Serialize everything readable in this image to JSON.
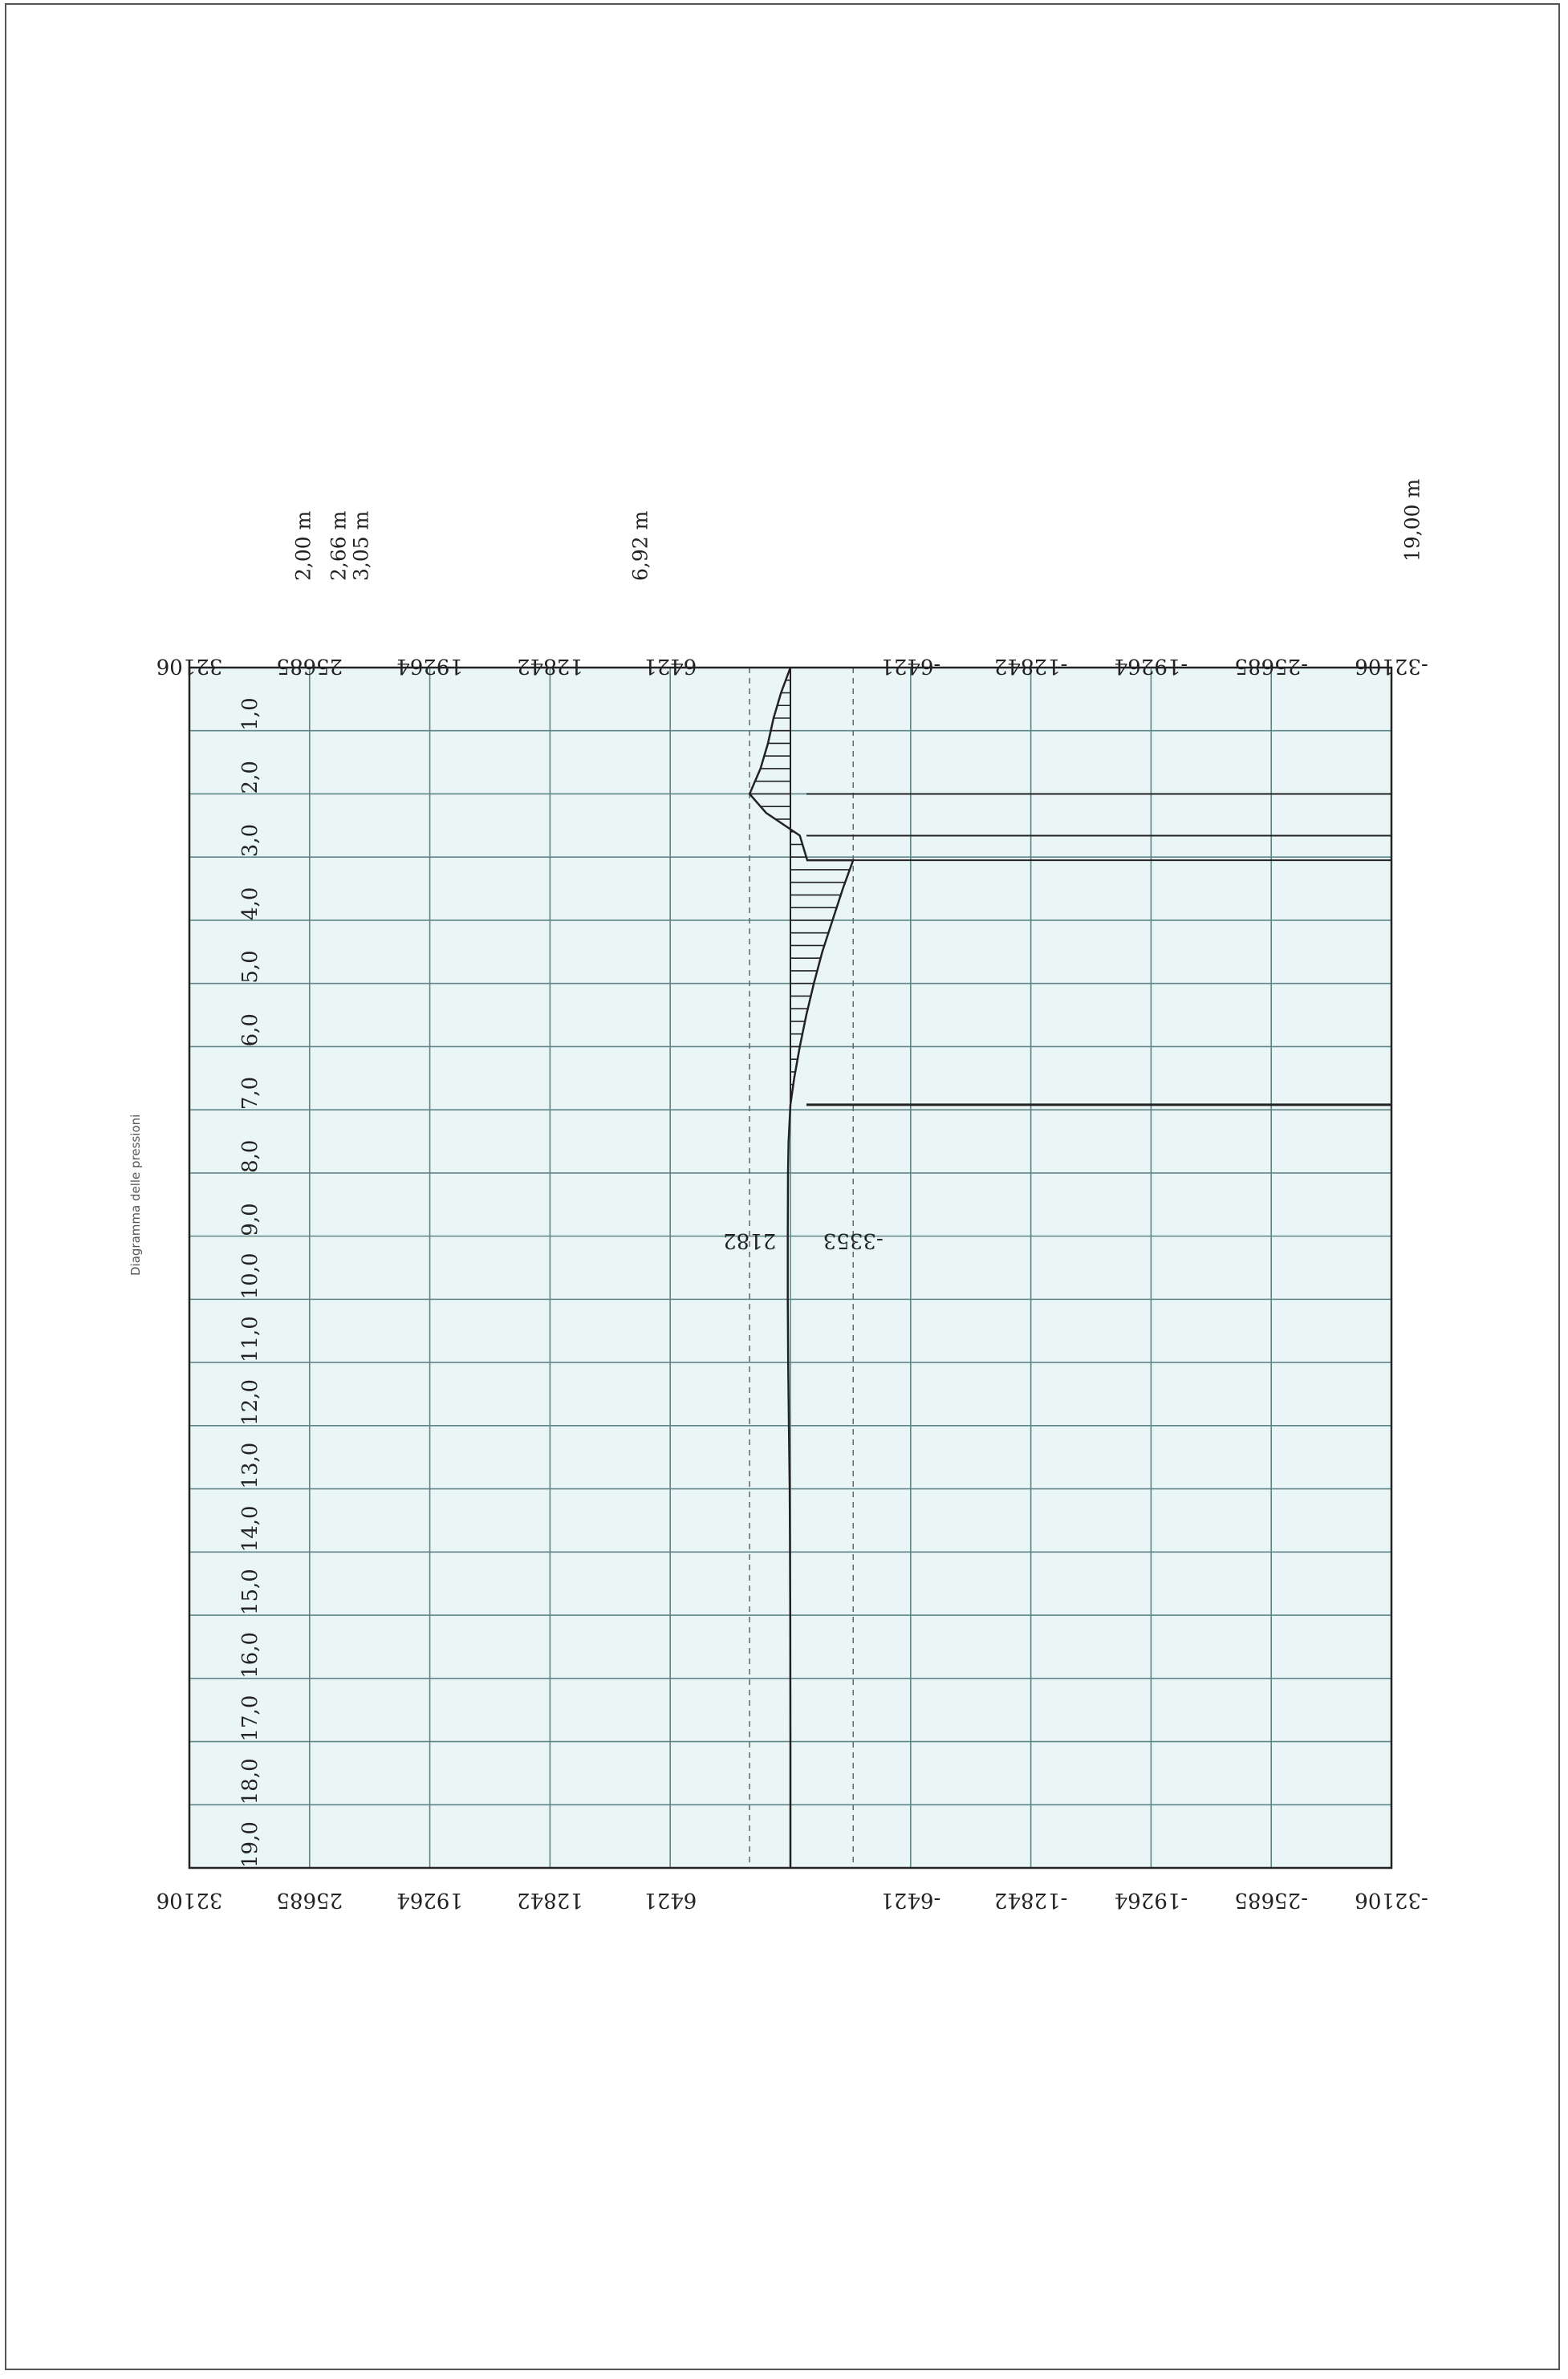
{
  "colors": {
    "plot_bg": "#eaf5f5",
    "grid": "#5f8587",
    "frame": "#222222",
    "curve": "#222222",
    "extreme_line": "#666666"
  },
  "chart_data": {
    "type": "area",
    "orientation": "rotated 90° (x axis runs down the page, values run left-right)",
    "ylabel": "Diagramma delle pressioni",
    "xlim": [
      0,
      19
    ],
    "ylim": [
      -32106,
      32106
    ],
    "x_ticks": [
      "1,0",
      "2,0",
      "3,0",
      "4,0",
      "5,0",
      "6,0",
      "7,0",
      "8,0",
      "9,0",
      "10,0",
      "11,0",
      "12,0",
      "13,0",
      "14,0",
      "15,0",
      "16,0",
      "17,0",
      "18,0",
      "19,0"
    ],
    "x_tick_values": [
      1,
      2,
      3,
      4,
      5,
      6,
      7,
      8,
      9,
      10,
      11,
      12,
      13,
      14,
      15,
      16,
      17,
      18,
      19
    ],
    "y_ticks": [
      {
        "label": "32106",
        "value": 32106
      },
      {
        "label": "25685",
        "value": 25685
      },
      {
        "label": "19264",
        "value": 19264
      },
      {
        "label": "12842",
        "value": 12842
      },
      {
        "label": "6421",
        "value": 6421
      },
      {
        "label": "-6421",
        "value": -6421
      },
      {
        "label": "-12842",
        "value": -12842
      },
      {
        "label": "-19264",
        "value": -19264
      },
      {
        "label": "-25685",
        "value": -25685
      },
      {
        "label": "-32106",
        "value": -32106
      }
    ],
    "extremes": [
      {
        "label": "2182",
        "value": 2182
      },
      {
        "label": "-3353",
        "value": -3353
      }
    ],
    "markers": [
      {
        "label": "2,00 m",
        "x": 2.0
      },
      {
        "label": "2,66 m",
        "x": 2.66
      },
      {
        "label": "3,05 m",
        "x": 3.05
      },
      {
        "label": "6,92 m",
        "x": 6.92
      },
      {
        "label": "19,00 m",
        "x": 19.0
      }
    ],
    "grid": true,
    "series": [
      {
        "x": [
          0,
          0.4,
          0.8,
          1.2,
          1.6,
          2.0,
          2.3,
          2.66,
          3.05,
          3.05,
          3.5,
          4.0,
          4.5,
          5.0,
          5.5,
          6.0,
          6.5,
          6.92,
          7.5,
          8.0,
          9.0,
          10.0,
          11.0,
          12.0,
          13.0,
          14.0,
          15.0,
          16.0,
          17.0,
          18.0,
          19.0
        ],
        "y": [
          0,
          500,
          900,
          1200,
          1600,
          2182,
          1300,
          -500,
          -900,
          -3353,
          -2800,
          -2250,
          -1700,
          -1250,
          -850,
          -500,
          -200,
          0,
          100,
          130,
          140,
          140,
          120,
          80,
          40,
          20,
          10,
          5,
          0,
          0,
          0
        ]
      }
    ]
  }
}
